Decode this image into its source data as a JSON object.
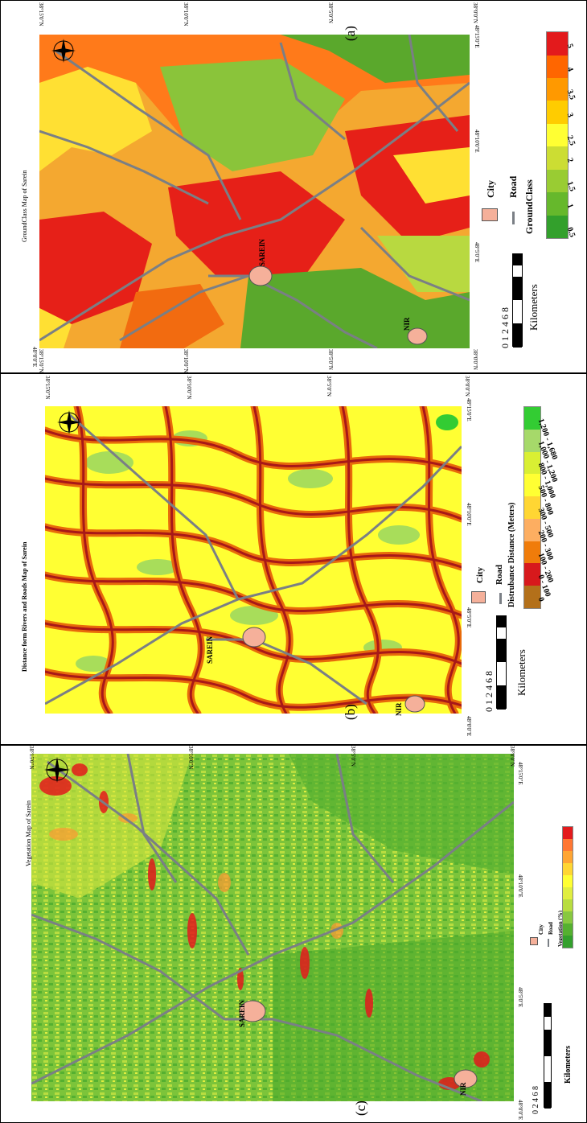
{
  "panel_a": {
    "letter": "(a)",
    "title": "GroundClass Map of Sarein",
    "city_sarein": "SAREIN",
    "city_nir": "NIR",
    "ticks_top": [
      "38°15'0\"N",
      "38°10'0\"N",
      "38°5'0\"N",
      "38°0'0\"N"
    ],
    "ticks_bottom": [
      "38°15'0\"N",
      "38°10'0\"N",
      "38°5'0\"N",
      "38°0'0\"N"
    ],
    "ticks_left": [
      "48°0'0\"E",
      "48°5'0\"E",
      "48°10'0\"E",
      "48°15'0\"E"
    ],
    "ticks_right": [
      "48°0'0\"E",
      "48°5'0\"E",
      "48°10'0\"E",
      "48°15'0\"E"
    ],
    "scale_numbers": "0 1 2     4     6     8",
    "scale_units": "Kilometers",
    "legend_city": "City",
    "legend_road": "Road",
    "legend_title": "GroundClass",
    "classes": [
      "0.5",
      "1",
      "1.5",
      "2",
      "2.5",
      "3",
      "3.5",
      "4",
      "5"
    ],
    "class_colors": [
      "#33a02c",
      "#66b82c",
      "#99cc33",
      "#ccdd33",
      "#ffff33",
      "#ffcc00",
      "#ff9900",
      "#ff6600",
      "#e31a1c"
    ]
  },
  "panel_b": {
    "letter": "(b)",
    "title": "Distance form Rivers and Roads Map of Sarein",
    "city_sarein": "SAREIN",
    "city_nir": "NIR",
    "ticks_top": [
      "38°15'0\"N",
      "38°10'0\"N",
      "38°5'0\"N",
      "38°0'0\"N"
    ],
    "ticks_left": [
      "48°0'0\"E",
      "48°5'0\"E",
      "48°10'0\"E",
      "48°15'0\"E"
    ],
    "scale_numbers": "0 1 2     4     6     8",
    "scale_units": "Kilometers",
    "legend_city": "City",
    "legend_road": "Road",
    "legend_title": "Distrubance Distance (Meters)",
    "classes": [
      "0",
      "0 - 100",
      "100 - 200",
      "200 - 300",
      "300 - 500",
      "500 - 800",
      "800 - 1,000",
      "1,000 - 1,200",
      "1,200 - 1,680"
    ],
    "class_colors": [
      "#b3701a",
      "#d7191c",
      "#f07c0a",
      "#fdae61",
      "#ffd633",
      "#ffff33",
      "#d9ef33",
      "#a6d96a",
      "#33cc33"
    ]
  },
  "panel_c": {
    "letter": "(c)",
    "title": "Vegetation Map of Sarein",
    "city_sarein": "SAREIN",
    "city_nir": "NIR",
    "ticks_top": [
      "38°15'0\"N",
      "38°10'0\"N",
      "38°5'0\"N",
      "38°0'0\"N"
    ],
    "ticks_left": [
      "48°0'0\"E",
      "48°5'0\"E",
      "48°10'0\"E",
      "48°15'0\"E"
    ],
    "scale_numbers": "0     2     4     6     8",
    "scale_units": "Kilometers",
    "legend_city": "City",
    "legend_road": "Road",
    "legend_title": "Vegetation (%)",
    "class_colors": [
      "#33a02c",
      "#55b030",
      "#88c840",
      "#b8dd40",
      "#e0ee40",
      "#ffff33",
      "#ffd633",
      "#ffa533",
      "#ff7733",
      "#e31a1c"
    ]
  }
}
